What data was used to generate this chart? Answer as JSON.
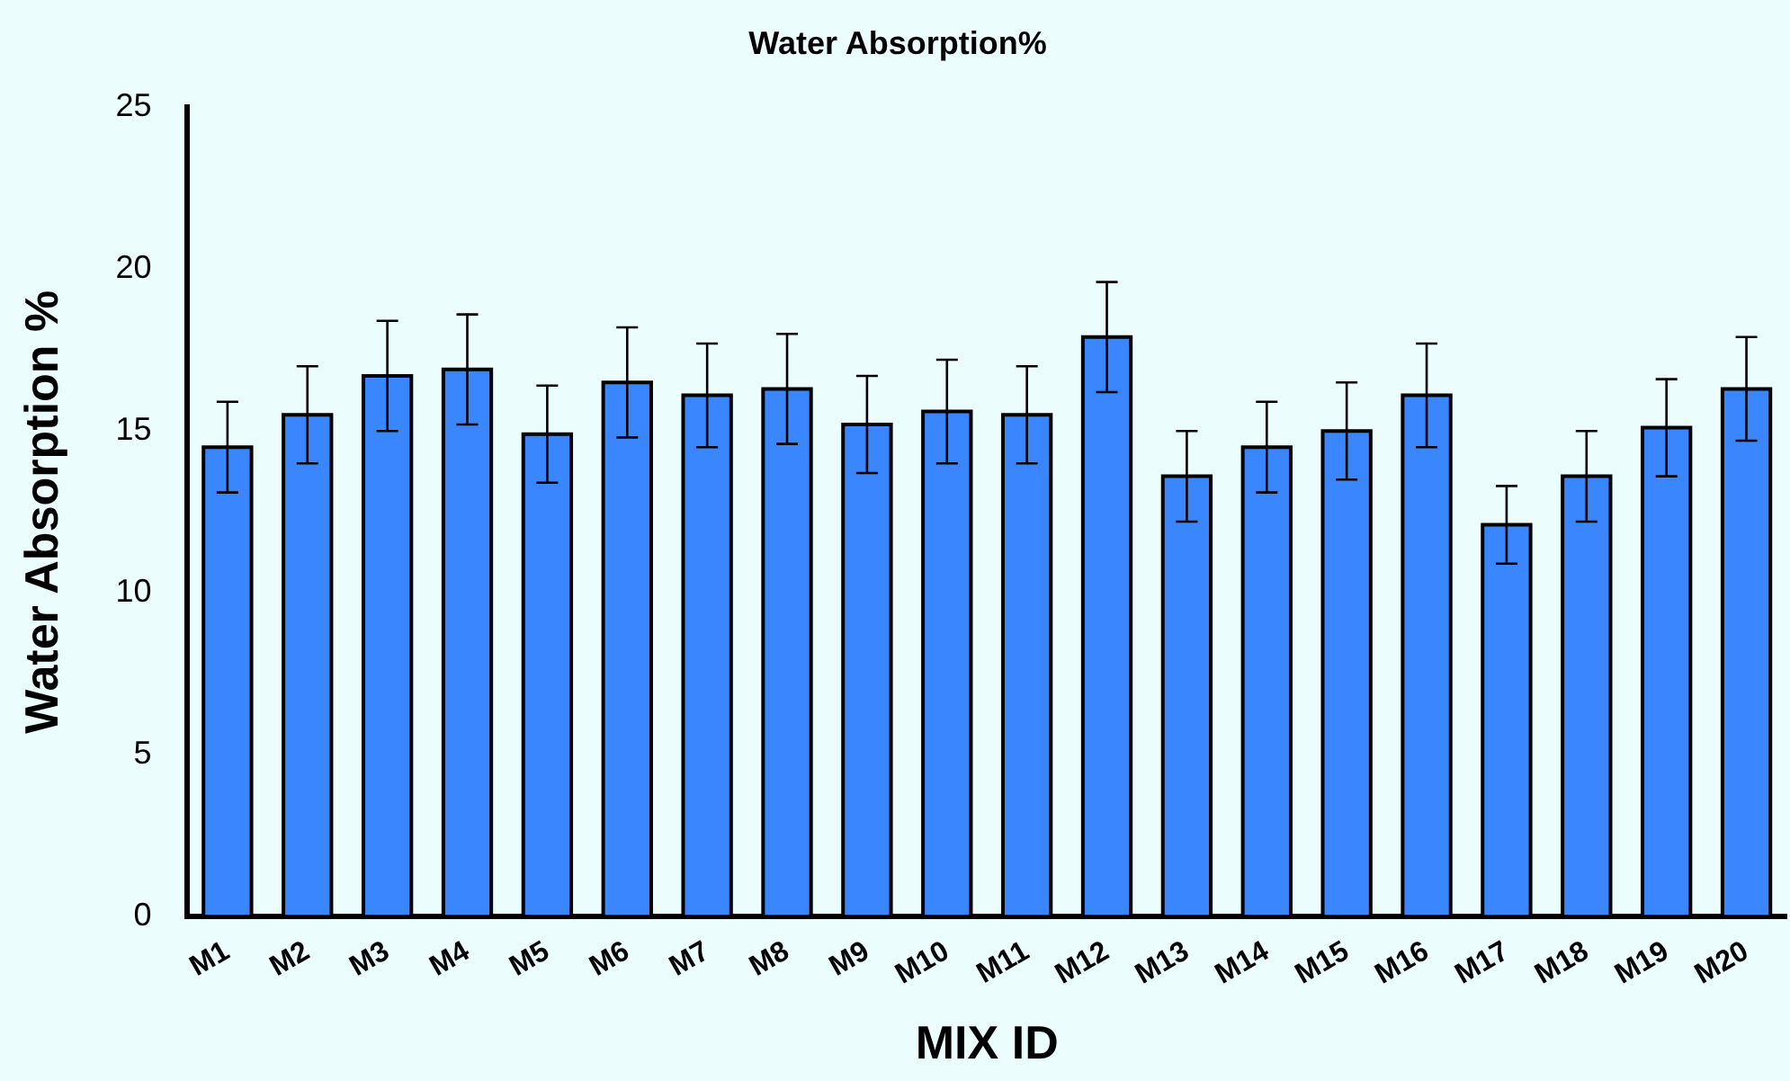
{
  "chart_data": {
    "type": "bar",
    "title": "Water Absorption%",
    "xlabel": "MIX ID",
    "ylabel": "Water Absorption %",
    "categories": [
      "M1",
      "M2",
      "M3",
      "M4",
      "M5",
      "M6",
      "M7",
      "M8",
      "M9",
      "M10",
      "M11",
      "M12",
      "M13",
      "M14",
      "M15",
      "M16",
      "M17",
      "M18",
      "M19",
      "M20"
    ],
    "values": [
      14.5,
      15.5,
      16.7,
      16.9,
      14.9,
      16.5,
      16.1,
      16.3,
      15.2,
      15.6,
      15.5,
      17.9,
      13.6,
      14.5,
      15.0,
      16.1,
      12.1,
      13.6,
      15.1,
      16.3
    ],
    "errors": [
      1.4,
      1.5,
      1.7,
      1.7,
      1.5,
      1.7,
      1.6,
      1.7,
      1.5,
      1.6,
      1.5,
      1.7,
      1.4,
      1.4,
      1.5,
      1.6,
      1.2,
      1.4,
      1.5,
      1.6
    ],
    "color": "#3a86ff",
    "ylim": [
      0,
      25
    ],
    "yticks": [
      0,
      5,
      10,
      15,
      20,
      25
    ],
    "grid": false,
    "legend": false
  }
}
